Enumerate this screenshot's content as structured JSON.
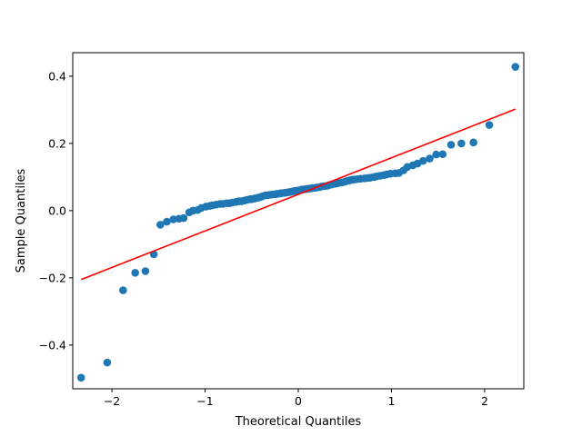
{
  "chart_data": {
    "type": "scatter",
    "xlabel": "Theoretical Quantiles",
    "ylabel": "Sample Quantiles",
    "xlim": [
      -2.42,
      2.42
    ],
    "ylim": [
      -0.53,
      0.47
    ],
    "xticks": [
      -2,
      -1,
      0,
      1,
      2
    ],
    "xtick_labels": [
      "−2",
      "−1",
      "0",
      "1",
      "2"
    ],
    "yticks": [
      -0.4,
      -0.2,
      0.0,
      0.2,
      0.4
    ],
    "ytick_labels": [
      "−0.4",
      "−0.2",
      "0.0",
      "0.2",
      "0.4"
    ],
    "grid": false,
    "legend": "none",
    "marker_color": "#1f77b4",
    "line_color": "#ff0000",
    "reference_line": {
      "x": [
        -2.33,
        2.33
      ],
      "y": [
        -0.205,
        0.302
      ]
    },
    "x": [
      -2.33,
      -2.05,
      -1.88,
      -1.75,
      -1.64,
      -1.55,
      -1.48,
      -1.41,
      -1.34,
      -1.28,
      -1.23,
      -1.17,
      -1.13,
      -1.08,
      -1.04,
      -0.99,
      -0.95,
      -0.92,
      -0.88,
      -0.84,
      -0.81,
      -0.77,
      -0.74,
      -0.71,
      -0.67,
      -0.64,
      -0.61,
      -0.58,
      -0.55,
      -0.52,
      -0.5,
      -0.47,
      -0.44,
      -0.41,
      -0.39,
      -0.36,
      -0.33,
      -0.31,
      -0.28,
      -0.25,
      -0.23,
      -0.2,
      -0.18,
      -0.15,
      -0.13,
      -0.1,
      -0.08,
      -0.05,
      -0.03,
      0.0,
      0.03,
      0.05,
      0.08,
      0.1,
      0.13,
      0.15,
      0.18,
      0.2,
      0.23,
      0.25,
      0.28,
      0.31,
      0.33,
      0.36,
      0.39,
      0.41,
      0.44,
      0.47,
      0.5,
      0.52,
      0.55,
      0.58,
      0.61,
      0.64,
      0.67,
      0.71,
      0.74,
      0.77,
      0.81,
      0.84,
      0.88,
      0.92,
      0.95,
      0.99,
      1.04,
      1.08,
      1.13,
      1.17,
      1.23,
      1.28,
      1.34,
      1.41,
      1.48,
      1.55,
      1.64,
      1.75,
      1.88,
      2.05,
      2.33
    ],
    "y": [
      -0.497,
      -0.452,
      -0.237,
      -0.185,
      -0.18,
      -0.13,
      -0.042,
      -0.033,
      -0.026,
      -0.024,
      -0.022,
      -0.005,
      0.0,
      0.002,
      0.008,
      0.012,
      0.014,
      0.016,
      0.018,
      0.02,
      0.02,
      0.022,
      0.022,
      0.024,
      0.026,
      0.028,
      0.028,
      0.03,
      0.032,
      0.034,
      0.034,
      0.036,
      0.038,
      0.04,
      0.042,
      0.045,
      0.046,
      0.047,
      0.048,
      0.049,
      0.05,
      0.051,
      0.052,
      0.053,
      0.054,
      0.055,
      0.056,
      0.058,
      0.059,
      0.06,
      0.062,
      0.063,
      0.064,
      0.065,
      0.066,
      0.067,
      0.068,
      0.069,
      0.07,
      0.072,
      0.073,
      0.074,
      0.076,
      0.078,
      0.08,
      0.081,
      0.083,
      0.084,
      0.086,
      0.088,
      0.09,
      0.092,
      0.093,
      0.094,
      0.095,
      0.096,
      0.097,
      0.098,
      0.1,
      0.102,
      0.104,
      0.106,
      0.108,
      0.11,
      0.111,
      0.112,
      0.12,
      0.13,
      0.135,
      0.14,
      0.148,
      0.155,
      0.167,
      0.168,
      0.196,
      0.2,
      0.203,
      0.255,
      0.428
    ]
  }
}
